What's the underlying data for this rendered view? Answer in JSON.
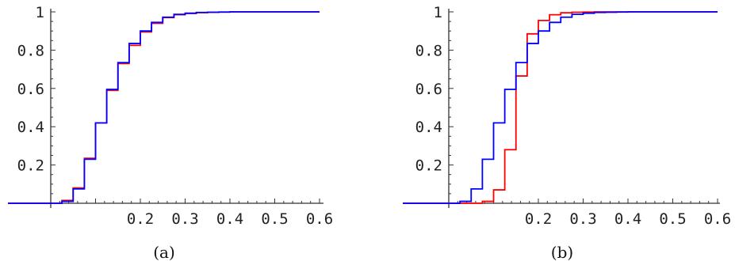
{
  "chart_data": [
    {
      "type": "line",
      "step": true,
      "caption": "(a)",
      "xlim": [
        0,
        0.6
      ],
      "ylim": [
        0,
        1
      ],
      "xticks": [
        0.2,
        0.3,
        0.4,
        0.5,
        0.6
      ],
      "xtick_labels": [
        "0.2",
        "0.3",
        "0.4",
        "0.5",
        "0.6"
      ],
      "yticks": [
        0.2,
        0.4,
        0.6,
        0.8,
        1
      ],
      "ytick_labels": [
        "0.2",
        "0.4",
        "0.6",
        "0.8",
        "1"
      ],
      "series": [
        {
          "color": "#ff0000",
          "x": [
            -0.3,
            0.025,
            0.025,
            0.05,
            0.05,
            0.075,
            0.075,
            0.1,
            0.1,
            0.125,
            0.125,
            0.15,
            0.15,
            0.175,
            0.175,
            0.2,
            0.2,
            0.225,
            0.225,
            0.25,
            0.25,
            0.275,
            0.275,
            0.3,
            0.3,
            0.325,
            0.325,
            0.35,
            0.35,
            0.375,
            0.375,
            0.4,
            0.4,
            0.45,
            0.45,
            0.6
          ],
          "y": [
            0,
            0,
            0.015,
            0.015,
            0.08,
            0.08,
            0.235,
            0.235,
            0.42,
            0.42,
            0.59,
            0.59,
            0.73,
            0.73,
            0.825,
            0.825,
            0.895,
            0.895,
            0.94,
            0.94,
            0.97,
            0.97,
            0.985,
            0.985,
            0.992,
            0.992,
            0.996,
            0.996,
            0.998,
            0.998,
            0.999,
            0.999,
            1,
            1,
            1,
            1
          ]
        },
        {
          "color": "#0000ff",
          "x": [
            -0.3,
            0.025,
            0.025,
            0.05,
            0.05,
            0.075,
            0.075,
            0.1,
            0.1,
            0.125,
            0.125,
            0.15,
            0.15,
            0.175,
            0.175,
            0.2,
            0.2,
            0.225,
            0.225,
            0.25,
            0.25,
            0.275,
            0.275,
            0.3,
            0.3,
            0.325,
            0.325,
            0.35,
            0.35,
            0.375,
            0.375,
            0.4,
            0.4,
            0.45,
            0.45,
            0.6
          ],
          "y": [
            0,
            0,
            0.01,
            0.01,
            0.075,
            0.075,
            0.23,
            0.23,
            0.42,
            0.42,
            0.595,
            0.595,
            0.735,
            0.735,
            0.835,
            0.835,
            0.9,
            0.9,
            0.945,
            0.945,
            0.972,
            0.972,
            0.987,
            0.987,
            0.993,
            0.993,
            0.997,
            0.997,
            0.998,
            0.998,
            0.999,
            0.999,
            1,
            1,
            1,
            1
          ]
        }
      ]
    },
    {
      "type": "line",
      "step": true,
      "caption": "(b)",
      "xlim": [
        0,
        0.6
      ],
      "ylim": [
        0,
        1
      ],
      "xticks": [
        0.2,
        0.3,
        0.4,
        0.5,
        0.6
      ],
      "xtick_labels": [
        "0.2",
        "0.3",
        "0.4",
        "0.5",
        "0.6"
      ],
      "yticks": [
        0.2,
        0.4,
        0.6,
        0.8,
        1
      ],
      "ytick_labels": [
        "0.2",
        "0.4",
        "0.6",
        "0.8",
        "1"
      ],
      "series": [
        {
          "color": "#ff0000",
          "x": [
            -0.3,
            0.075,
            0.075,
            0.1,
            0.1,
            0.125,
            0.125,
            0.15,
            0.15,
            0.175,
            0.175,
            0.2,
            0.2,
            0.225,
            0.225,
            0.25,
            0.25,
            0.275,
            0.275,
            0.3,
            0.3,
            0.325,
            0.325,
            0.35,
            0.35,
            0.4,
            0.4,
            0.6
          ],
          "y": [
            0,
            0,
            0.01,
            0.01,
            0.07,
            0.07,
            0.28,
            0.28,
            0.665,
            0.665,
            0.885,
            0.885,
            0.955,
            0.955,
            0.985,
            0.985,
            0.995,
            0.995,
            0.998,
            0.998,
            0.999,
            0.999,
            1,
            1,
            1,
            1,
            1,
            1
          ]
        },
        {
          "color": "#0000ff",
          "x": [
            -0.3,
            0.025,
            0.025,
            0.05,
            0.05,
            0.075,
            0.075,
            0.1,
            0.1,
            0.125,
            0.125,
            0.15,
            0.15,
            0.175,
            0.175,
            0.2,
            0.2,
            0.225,
            0.225,
            0.25,
            0.25,
            0.275,
            0.275,
            0.3,
            0.3,
            0.325,
            0.325,
            0.35,
            0.35,
            0.375,
            0.375,
            0.4,
            0.4,
            0.45,
            0.45,
            0.6
          ],
          "y": [
            0,
            0,
            0.01,
            0.01,
            0.075,
            0.075,
            0.23,
            0.23,
            0.42,
            0.42,
            0.595,
            0.595,
            0.735,
            0.735,
            0.835,
            0.835,
            0.9,
            0.9,
            0.945,
            0.945,
            0.972,
            0.972,
            0.987,
            0.987,
            0.993,
            0.993,
            0.997,
            0.997,
            0.998,
            0.998,
            0.999,
            0.999,
            1,
            1,
            1,
            1
          ]
        }
      ]
    }
  ]
}
